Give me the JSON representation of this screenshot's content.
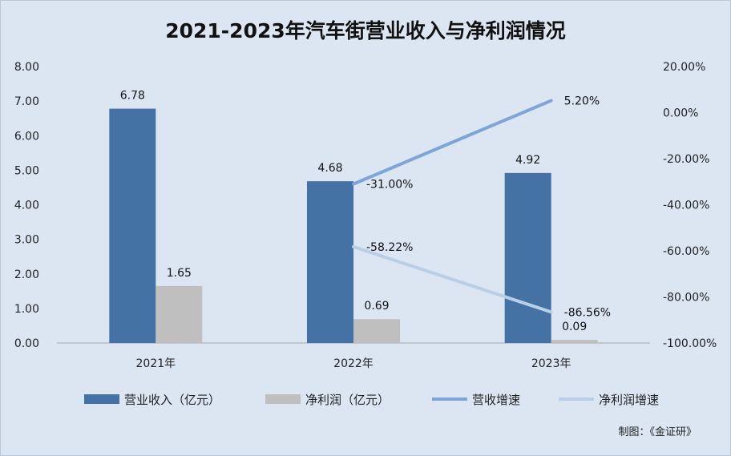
{
  "chart_data": {
    "type": "bar",
    "title": "2021-2023年汽车街营业收入与净利润情况",
    "categories": [
      "2021年",
      "2022年",
      "2023年"
    ],
    "series": [
      {
        "name": "营业收入（亿元）",
        "type": "bar",
        "axis": "left",
        "color": "#4472a4",
        "values": [
          6.78,
          4.68,
          4.92
        ],
        "labels": [
          "6.78",
          "4.68",
          "4.92"
        ]
      },
      {
        "name": "净利润（亿元）",
        "type": "bar",
        "axis": "left",
        "color": "#bfbfbf",
        "values": [
          1.65,
          0.69,
          0.09
        ],
        "labels": [
          "1.65",
          "0.69",
          "0.09"
        ]
      },
      {
        "name": "营收增速",
        "type": "line",
        "axis": "right",
        "color": "#7ea4d8",
        "values": [
          null,
          -31.0,
          5.2
        ],
        "labels": [
          "",
          "-31.00%",
          "5.20%"
        ]
      },
      {
        "name": "净利润增速",
        "type": "line",
        "axis": "right",
        "color": "#b9cfe8",
        "values": [
          null,
          -58.22,
          -86.56
        ],
        "labels": [
          "",
          "-58.22%",
          "-86.56%"
        ]
      }
    ],
    "y_left": {
      "ylim": [
        0,
        8
      ],
      "ticks": [
        "0.00",
        "1.00",
        "2.00",
        "3.00",
        "4.00",
        "5.00",
        "6.00",
        "7.00",
        "8.00"
      ]
    },
    "y_right": {
      "ylim": [
        -100,
        20
      ],
      "ticks": [
        "-100.00%",
        "-80.00%",
        "-60.00%",
        "-40.00%",
        "-20.00%",
        "0.00%",
        "20.00%"
      ]
    },
    "legend_position": "bottom",
    "grid": false,
    "source_note": "制图：《金证研》"
  }
}
